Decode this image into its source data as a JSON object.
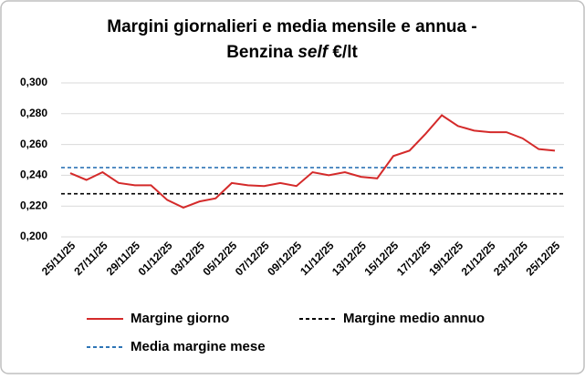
{
  "chart_data": {
    "type": "line",
    "title": [
      "Margini giornalieri e media mensile e annua -",
      "Benzina",
      "self",
      "€/lt"
    ],
    "categories": [
      "25/11/25",
      null,
      "27/11/25",
      null,
      "29/11/25",
      null,
      "01/12/25",
      null,
      "03/12/25",
      null,
      "05/12/25",
      null,
      "07/12/25",
      null,
      "09/12/25",
      null,
      "11/12/25",
      null,
      "13/12/25",
      null,
      "15/12/25",
      null,
      "17/12/25",
      null,
      "19/12/25",
      null,
      "21/12/25",
      null,
      "23/12/25",
      null,
      "25/12/25"
    ],
    "series": [
      {
        "name": "Margine giorno",
        "color": "#d42a2a",
        "values": [
          0.2414,
          0.237,
          0.242,
          0.235,
          0.2335,
          0.2335,
          0.224,
          0.219,
          0.223,
          0.225,
          0.235,
          0.2335,
          0.233,
          0.235,
          0.233,
          0.242,
          0.24,
          0.242,
          0.239,
          0.238,
          0.2525,
          0.256,
          0.267,
          0.279,
          0.272,
          0.269,
          0.268,
          0.268,
          0.264,
          0.257,
          0.256
        ]
      }
    ],
    "reference_lines": [
      {
        "name": "Margine medio annuo",
        "color": "#000000",
        "value": 0.228
      },
      {
        "name": "Media margine mese",
        "color": "#2e75b6",
        "value": 0.245
      }
    ],
    "ylim": [
      0.2,
      0.3
    ],
    "yticks": [
      {
        "value": 0.2,
        "label": "0,200"
      },
      {
        "value": 0.22,
        "label": "0,220"
      },
      {
        "value": 0.24,
        "label": "0,240"
      },
      {
        "value": 0.26,
        "label": "0,260"
      },
      {
        "value": 0.28,
        "label": "0,280"
      },
      {
        "value": 0.3,
        "label": "0,300"
      }
    ],
    "grid": true
  }
}
